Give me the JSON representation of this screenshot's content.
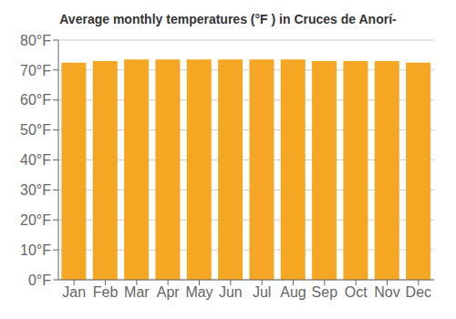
{
  "chart_data": {
    "type": "bar",
    "title": "Average monthly temperatures (°F ) in Cruces de Anorí-",
    "categories": [
      "Jan",
      "Feb",
      "Mar",
      "Apr",
      "May",
      "Jun",
      "Jul",
      "Aug",
      "Sep",
      "Oct",
      "Nov",
      "Dec"
    ],
    "values": [
      72.5,
      73.0,
      73.5,
      73.5,
      73.5,
      73.5,
      73.5,
      73.5,
      73.0,
      73.0,
      73.0,
      72.5
    ],
    "color": "#F5A623",
    "ylim": [
      0,
      80
    ],
    "yticks": [
      {
        "value": 0,
        "label": "0°F"
      },
      {
        "value": 10,
        "label": "10°F"
      },
      {
        "value": 20,
        "label": "20°F"
      },
      {
        "value": 30,
        "label": "30°F"
      },
      {
        "value": 40,
        "label": "40°F"
      },
      {
        "value": 50,
        "label": "50°F"
      },
      {
        "value": 60,
        "label": "60°F"
      },
      {
        "value": 70,
        "label": "70°F"
      },
      {
        "value": 80,
        "label": "80°F"
      }
    ],
    "grid": true
  }
}
